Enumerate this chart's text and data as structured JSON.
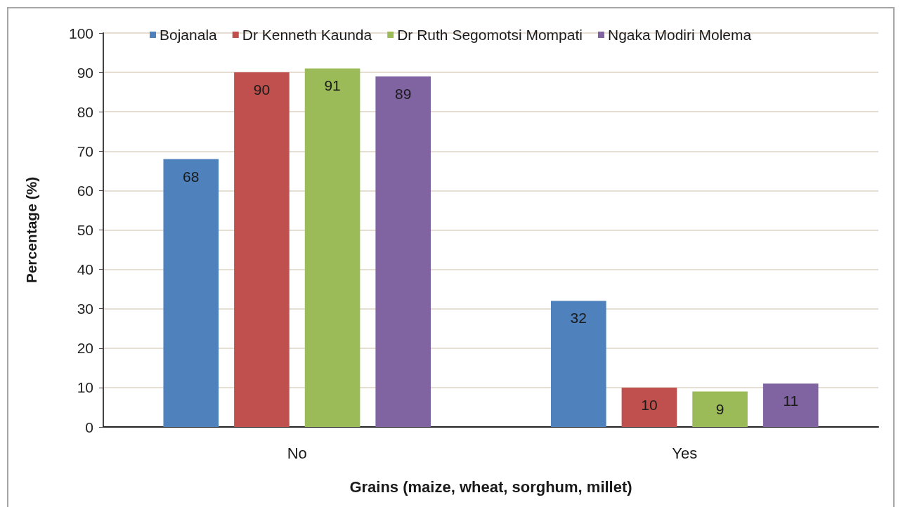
{
  "chart_data": {
    "type": "bar",
    "xlabel": "Grains (maize, wheat, sorghum, millet)",
    "ylabel": "Percentage (%)",
    "categories": [
      "No",
      "Yes"
    ],
    "series": [
      {
        "name": "Bojanala",
        "color": "#4f81bd",
        "values": [
          68,
          32
        ]
      },
      {
        "name": "Dr Kenneth Kaunda",
        "color": "#c0504d",
        "values": [
          90,
          10
        ]
      },
      {
        "name": "Dr Ruth Segomotsi Mompati",
        "color": "#9bbb59",
        "values": [
          91,
          9
        ]
      },
      {
        "name": "Ngaka Modiri Molema",
        "color": "#8064a2",
        "values": [
          89,
          11
        ]
      }
    ],
    "ylim": [
      0,
      100
    ],
    "yticks": [
      0,
      10,
      20,
      30,
      40,
      50,
      60,
      70,
      80,
      90,
      100
    ],
    "grid": "y",
    "legend": "top",
    "data_labels": true
  }
}
